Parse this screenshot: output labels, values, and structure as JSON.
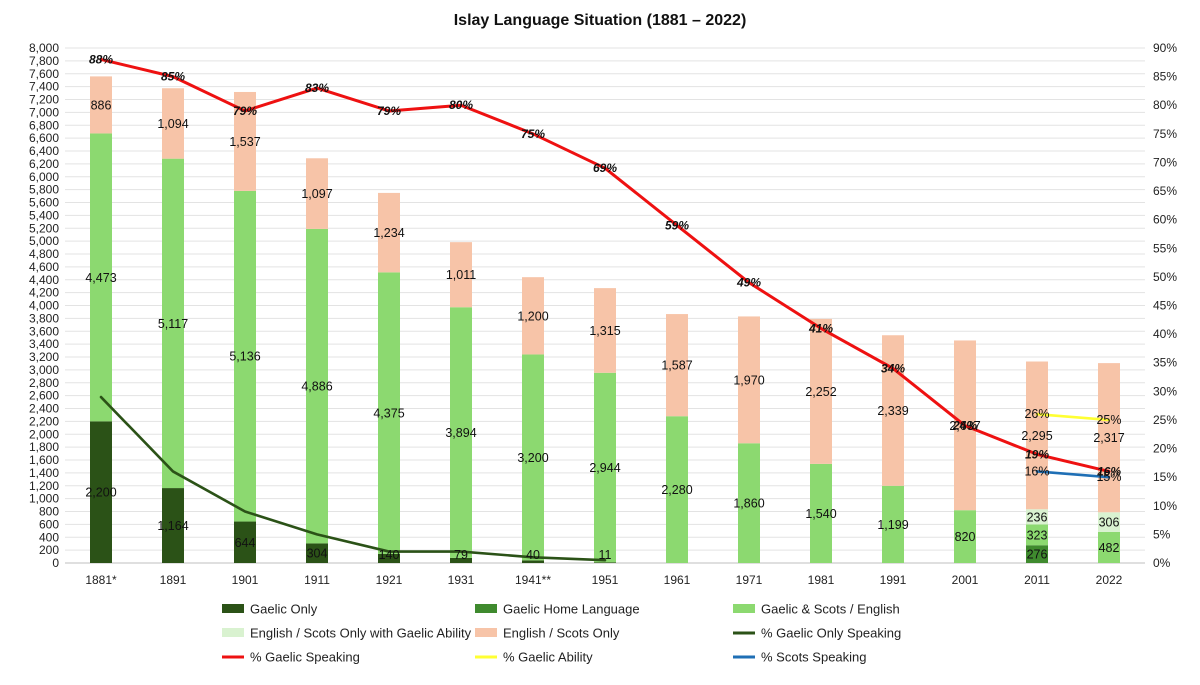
{
  "chart_data": {
    "type": "bar",
    "title": "Islay Language Situation (1881 – 2022)",
    "categories": [
      "1881*",
      "1891",
      "1901",
      "1911",
      "1921",
      "1931",
      "1941**",
      "1951",
      "1961",
      "1971",
      "1981",
      "1991",
      "2001",
      "2011",
      "2022"
    ],
    "left_axis": {
      "min": 0,
      "max": 8000,
      "step": 200
    },
    "right_axis": {
      "min": 0,
      "max": 90,
      "step": 5,
      "unit": "%"
    },
    "bar_series": [
      {
        "name": "Gaelic Only",
        "color": "#2b5217",
        "values": [
          2200,
          1164,
          644,
          304,
          140,
          79,
          40,
          11,
          null,
          null,
          null,
          null,
          null,
          null,
          null
        ],
        "label_mode": "bottom"
      },
      {
        "name": "Gaelic Home Language",
        "color": "#3f8a2e",
        "values": [
          null,
          null,
          null,
          null,
          null,
          null,
          null,
          null,
          null,
          null,
          null,
          null,
          null,
          276,
          null
        ],
        "label_mode": "bottom"
      },
      {
        "name": "Gaelic & Scots / English",
        "color": "#8cd970",
        "values": [
          4473,
          5117,
          5136,
          4886,
          4375,
          3894,
          3200,
          2944,
          2280,
          1860,
          1540,
          1199,
          820,
          323,
          482
        ],
        "label_mode": "middle"
      },
      {
        "name": "English / Scots Only with Gaelic Ability",
        "color": "#d9f2d0",
        "values": [
          null,
          null,
          null,
          null,
          null,
          null,
          null,
          null,
          null,
          null,
          null,
          null,
          null,
          236,
          306
        ],
        "label_mode": "middle"
      },
      {
        "name": "English / Scots Only",
        "color": "#f7c4a8",
        "values": [
          886,
          1094,
          1537,
          1097,
          1234,
          1011,
          1200,
          1315,
          1587,
          1970,
          2252,
          2339,
          2637,
          2295,
          2317
        ],
        "label_mode": "middle"
      }
    ],
    "line_series": [
      {
        "name": "% Gaelic Only Speaking",
        "color": "#2b5217",
        "values": [
          29,
          16,
          9,
          5,
          2,
          2,
          1,
          0.5,
          null,
          null,
          null,
          null,
          null,
          null,
          null
        ],
        "labels": []
      },
      {
        "name": "% Gaelic Speaking",
        "color": "#ee1111",
        "values": [
          88,
          85,
          79,
          83,
          79,
          80,
          75,
          69,
          59,
          49,
          41,
          34,
          24,
          19,
          16
        ],
        "labels": [
          "88%",
          "85%",
          "79%",
          "83%",
          "79%",
          "80%",
          "75%",
          "69%",
          "59%",
          "49%",
          "41%",
          "34%",
          "24%",
          "19%",
          "16%"
        ]
      },
      {
        "name": "% Gaelic Ability",
        "color": "#ffff33",
        "values": [
          null,
          null,
          null,
          null,
          null,
          null,
          null,
          null,
          null,
          null,
          null,
          null,
          null,
          26,
          25
        ],
        "labels": [
          null,
          null,
          null,
          null,
          null,
          null,
          null,
          null,
          null,
          null,
          null,
          null,
          null,
          "26%",
          "25%"
        ]
      },
      {
        "name": "% Scots Speaking",
        "color": "#1f6fb5",
        "values": [
          null,
          null,
          null,
          null,
          null,
          null,
          null,
          null,
          null,
          null,
          null,
          null,
          null,
          16,
          15
        ],
        "labels": [
          null,
          null,
          null,
          null,
          null,
          null,
          null,
          null,
          null,
          null,
          null,
          null,
          null,
          "16%",
          "15%"
        ]
      }
    ],
    "legend_position": "bottom",
    "grid": true
  }
}
